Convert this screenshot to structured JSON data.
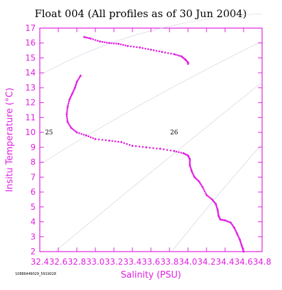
{
  "chart_data": {
    "type": "scatter",
    "title": "Float 004  (All profiles as of 30 Jun 2004)",
    "xlabel": "Salinity (PSU)",
    "ylabel": "Insitu Temperature (°C)",
    "xlim": [
      32.4,
      34.8
    ],
    "ylim": [
      2,
      17
    ],
    "x_ticks": [
      "32.4",
      "32.6",
      "32.8",
      "33.0",
      "33.2",
      "33.4",
      "33.6",
      "33.8",
      "34.0",
      "34.2",
      "34.4",
      "34.6",
      "34.8"
    ],
    "y_ticks": [
      "2",
      "3",
      "4",
      "5",
      "6",
      "7",
      "8",
      "9",
      "10",
      "11",
      "12",
      "13",
      "14",
      "15",
      "16",
      "17"
    ],
    "grid": false,
    "contour_labels": [
      {
        "text": "25",
        "salinity": 32.5,
        "temperature": 10.0
      },
      {
        "text": "26",
        "salinity": 33.85,
        "temperature": 10.0
      }
    ],
    "series": [
      {
        "color": "#e020e0",
        "points": [
          [
            34.6,
            2.0
          ],
          [
            34.58,
            2.4
          ],
          [
            34.56,
            2.8
          ],
          [
            34.53,
            3.2
          ],
          [
            34.5,
            3.6
          ],
          [
            34.46,
            3.95
          ],
          [
            34.4,
            4.1
          ],
          [
            34.35,
            4.15
          ],
          [
            34.33,
            4.4
          ],
          [
            34.32,
            4.8
          ],
          [
            34.3,
            5.2
          ],
          [
            34.26,
            5.5
          ],
          [
            34.2,
            5.8
          ],
          [
            34.16,
            6.3
          ],
          [
            34.12,
            6.7
          ],
          [
            34.07,
            7.0
          ],
          [
            34.04,
            7.4
          ],
          [
            34.02,
            7.8
          ],
          [
            34.02,
            8.2
          ],
          [
            34.0,
            8.45
          ],
          [
            33.95,
            8.6
          ],
          [
            33.85,
            8.75
          ],
          [
            33.7,
            8.9
          ],
          [
            33.55,
            9.0
          ],
          [
            33.4,
            9.1
          ],
          [
            33.28,
            9.35
          ],
          [
            33.15,
            9.45
          ],
          [
            33.0,
            9.55
          ],
          [
            32.9,
            9.8
          ],
          [
            32.8,
            10.0
          ],
          [
            32.74,
            10.3
          ],
          [
            32.7,
            10.7
          ],
          [
            32.69,
            11.2
          ],
          [
            32.7,
            11.7
          ],
          [
            32.72,
            12.2
          ],
          [
            32.75,
            12.6
          ],
          [
            32.78,
            13.0
          ],
          [
            32.8,
            13.4
          ],
          [
            32.84,
            13.8
          ],
          [
            32.88,
            16.4
          ],
          [
            32.95,
            16.3
          ],
          [
            33.05,
            16.1
          ],
          [
            33.15,
            16.0
          ],
          [
            33.25,
            15.95
          ],
          [
            33.35,
            15.8
          ],
          [
            33.48,
            15.7
          ],
          [
            33.6,
            15.55
          ],
          [
            33.72,
            15.4
          ],
          [
            33.85,
            15.25
          ],
          [
            33.93,
            15.1
          ],
          [
            33.97,
            14.9
          ],
          [
            34.0,
            14.7
          ],
          [
            34.0,
            14.6
          ]
        ]
      }
    ]
  },
  "footnote": "10886449029_5919028"
}
